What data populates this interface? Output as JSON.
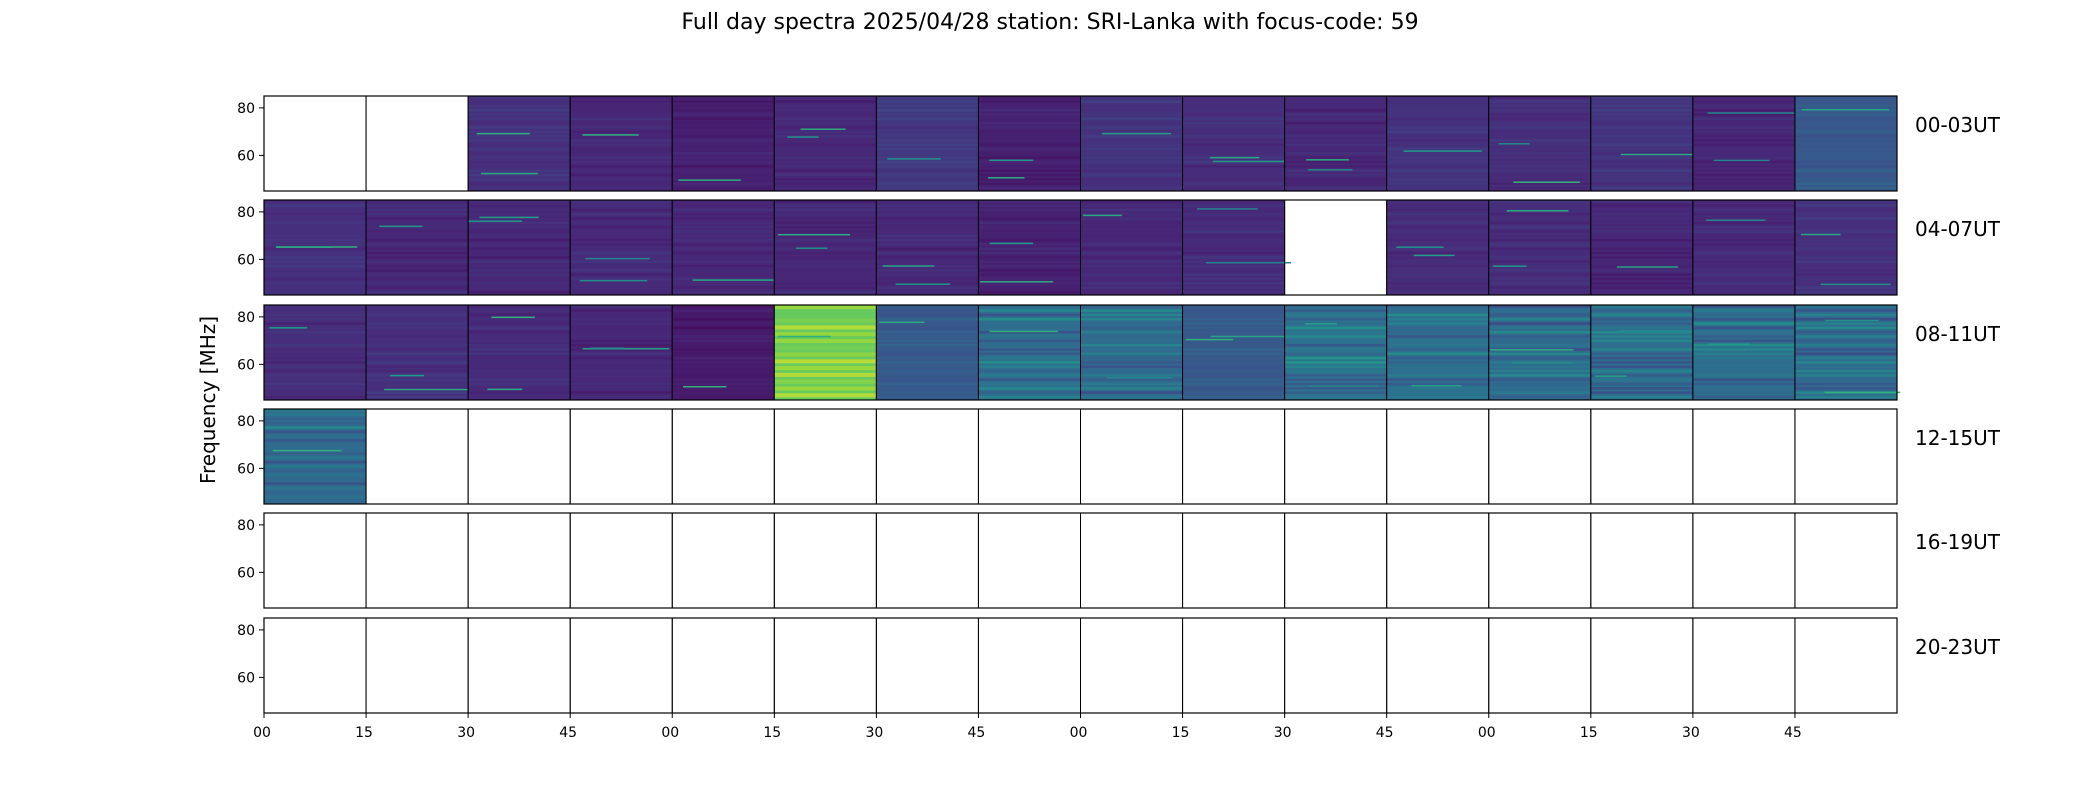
{
  "page": {
    "title": "Full day spectra 2025/04/28 station: SRI-Lanka with focus-code: 59",
    "ylabel": "Frequency [MHz]"
  },
  "chart_data": {
    "type": "heatmap",
    "title": "Full day spectra 2025/04/28 station: SRI-Lanka with focus-code: 59",
    "ylabel": "Frequency [MHz]",
    "xlabel": "",
    "colormap": "viridis",
    "colors": {
      "low": "#440154",
      "high": "#fde725",
      "empty": "#ffffff"
    },
    "freq_range_mhz": [
      45,
      85
    ],
    "yticks": [
      "80",
      "60"
    ],
    "ytick_values": [
      80,
      60
    ],
    "xtick_labels": [
      "00",
      "15",
      "30",
      "45",
      "00",
      "15",
      "30",
      "45",
      "00",
      "15",
      "30",
      "45",
      "00",
      "15",
      "30",
      "45"
    ],
    "panels_per_row": 16,
    "panel_minutes": 15,
    "rows": [
      {
        "label": "00-03UT",
        "data": [
          0,
          0,
          1,
          1,
          1,
          1,
          1,
          1,
          1,
          1,
          1,
          1,
          1,
          1,
          1,
          1
        ]
      },
      {
        "label": "04-07UT",
        "data": [
          1,
          1,
          1,
          1,
          1,
          1,
          1,
          1,
          1,
          1,
          0,
          1,
          1,
          1,
          1,
          1
        ]
      },
      {
        "label": "08-11UT",
        "data": [
          1,
          1,
          1,
          1,
          1,
          2,
          1,
          1,
          1,
          1,
          1,
          1,
          1,
          1,
          1,
          1
        ]
      },
      {
        "label": "12-15UT",
        "data": [
          1,
          0,
          0,
          0,
          0,
          0,
          0,
          0,
          0,
          0,
          0,
          0,
          0,
          0,
          0,
          0
        ]
      },
      {
        "label": "16-19UT",
        "data": [
          0,
          0,
          0,
          0,
          0,
          0,
          0,
          0,
          0,
          0,
          0,
          0,
          0,
          0,
          0,
          0
        ]
      },
      {
        "label": "20-23UT",
        "data": [
          0,
          0,
          0,
          0,
          0,
          0,
          0,
          0,
          0,
          0,
          0,
          0,
          0,
          0,
          0,
          0
        ]
      }
    ],
    "intensity": [
      [
        0,
        0,
        0.15,
        0.12,
        0.1,
        0.12,
        0.18,
        0.1,
        0.16,
        0.14,
        0.12,
        0.16,
        0.14,
        0.16,
        0.12,
        0.3
      ],
      [
        0.15,
        0.12,
        0.12,
        0.13,
        0.12,
        0.12,
        0.12,
        0.1,
        0.12,
        0.13,
        0,
        0.14,
        0.14,
        0.12,
        0.13,
        0.15
      ],
      [
        0.14,
        0.15,
        0.13,
        0.12,
        0.08,
        0.85,
        0.3,
        0.4,
        0.38,
        0.3,
        0.42,
        0.4,
        0.38,
        0.4,
        0.4,
        0.38
      ],
      [
        0.38,
        0,
        0,
        0,
        0,
        0,
        0,
        0,
        0,
        0,
        0,
        0,
        0,
        0,
        0,
        0
      ],
      [
        0,
        0,
        0,
        0,
        0,
        0,
        0,
        0,
        0,
        0,
        0,
        0,
        0,
        0,
        0,
        0
      ],
      [
        0,
        0,
        0,
        0,
        0,
        0,
        0,
        0,
        0,
        0,
        0,
        0,
        0,
        0,
        0,
        0
      ]
    ]
  }
}
